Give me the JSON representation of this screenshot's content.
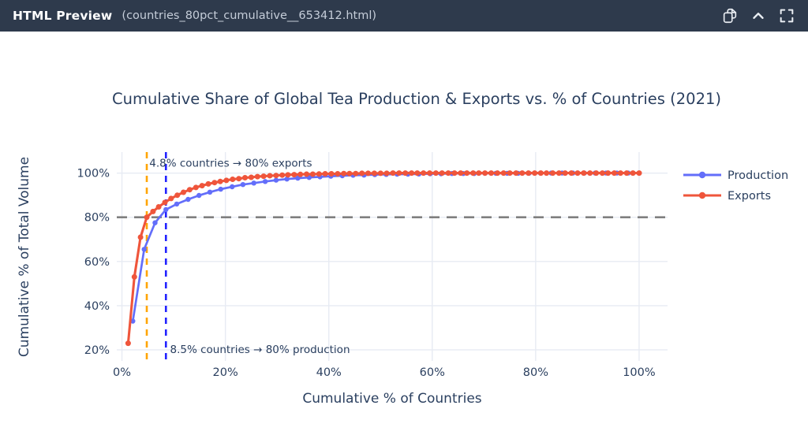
{
  "header": {
    "title": "HTML Preview",
    "filename": "(countries_80pct_cumulative__653412.html)",
    "icons": [
      "copy-icon",
      "collapse-icon",
      "fullscreen-icon"
    ]
  },
  "colors": {
    "header_bg": "#2e3a4c",
    "header_text": "#ffffff",
    "header_filename": "#c5cdd9",
    "header_icon": "#e9edf2",
    "text": "#2a3f5f",
    "grid": "#e7ebf3",
    "background": "#ffffff",
    "production": "#636efa",
    "exports": "#ef553b",
    "hline": "#7f7f7f",
    "vline_exports": "#ffa500",
    "vline_production": "#2222ff"
  },
  "chart_data": {
    "type": "line",
    "title": "Cumulative Share of Global Tea Production & Exports vs. % of Countries (2021)",
    "xlabel": "Cumulative % of Countries",
    "ylabel": "Cumulative % of Total Volume",
    "xlim": [
      -1,
      105.5
    ],
    "ylim": [
      15,
      109.5
    ],
    "grid": true,
    "legend_position": "right",
    "x_ticks": {
      "values": [
        0,
        20,
        40,
        60,
        80,
        100
      ],
      "labels": [
        "0%",
        "20%",
        "40%",
        "60%",
        "80%",
        "100%"
      ]
    },
    "y_ticks": {
      "values": [
        20,
        40,
        60,
        80,
        100
      ],
      "labels": [
        "20%",
        "40%",
        "60%",
        "80%",
        "100%"
      ]
    },
    "reference_lines": {
      "horizontal": [
        {
          "y": 80,
          "style": "dashed",
          "color_key": "hline"
        }
      ],
      "vertical": [
        {
          "x": 4.8,
          "style": "dashed",
          "color_key": "vline_exports"
        },
        {
          "x": 8.5,
          "style": "dashed",
          "color_key": "vline_production"
        }
      ]
    },
    "annotations": [
      {
        "text": "4.8% countries → 80% exports",
        "x": 5.3,
        "y": 104.6,
        "anchor": "start"
      },
      {
        "text": "8.5% countries → 80% production",
        "x": 9.3,
        "y": 20.3,
        "anchor": "start"
      }
    ],
    "series": [
      {
        "name": "Production",
        "color_key": "production",
        "line_width": 2.7,
        "marker_r": 3.2,
        "x": [
          2.1,
          4.3,
          6.4,
          8.5,
          10.6,
          12.8,
          14.9,
          17.0,
          19.1,
          21.3,
          23.4,
          25.5,
          27.7,
          29.8,
          31.9,
          34.0,
          36.2,
          38.3,
          40.4,
          42.6,
          44.7,
          46.8,
          48.9,
          51.1,
          53.2,
          55.3,
          57.4,
          59.6,
          61.7,
          63.8,
          66.0,
          68.1,
          70.2,
          72.3,
          74.5,
          76.6,
          78.7,
          80.9,
          83.0,
          85.1,
          87.2,
          89.4,
          91.5,
          93.6,
          95.7,
          97.9,
          100.0
        ],
        "y": [
          33.0,
          65.5,
          77.5,
          83.5,
          86.0,
          88.1,
          89.9,
          91.4,
          92.7,
          93.8,
          94.8,
          95.5,
          96.2,
          96.8,
          97.3,
          97.7,
          98.0,
          98.3,
          98.6,
          98.8,
          99.0,
          99.1,
          99.3,
          99.4,
          99.5,
          99.5,
          99.6,
          99.7,
          99.7,
          99.8,
          99.8,
          99.8,
          99.9,
          99.9,
          99.9,
          99.9,
          99.9,
          100.0,
          100.0,
          100.0,
          100.0,
          100.0,
          100.0,
          100.0,
          100.0,
          100.0,
          100.0
        ]
      },
      {
        "name": "Exports",
        "color_key": "exports",
        "line_width": 3.1,
        "marker_r": 3.5,
        "x": [
          1.2,
          2.4,
          3.6,
          4.8,
          6.0,
          7.1,
          8.3,
          9.5,
          10.7,
          11.9,
          13.1,
          14.3,
          15.5,
          16.7,
          17.9,
          19.0,
          20.2,
          21.4,
          22.6,
          23.8,
          25.0,
          26.2,
          27.4,
          28.6,
          29.8,
          31.0,
          32.1,
          33.3,
          34.5,
          35.7,
          36.9,
          38.1,
          39.3,
          40.5,
          41.7,
          42.9,
          44.0,
          45.2,
          46.4,
          47.6,
          48.8,
          50.0,
          51.2,
          52.4,
          53.6,
          54.8,
          56.0,
          57.1,
          58.3,
          59.5,
          60.7,
          61.9,
          63.1,
          64.3,
          65.5,
          66.7,
          67.9,
          69.0,
          70.2,
          71.4,
          72.6,
          73.8,
          75.0,
          76.2,
          77.4,
          78.6,
          79.8,
          81.0,
          82.1,
          83.3,
          84.5,
          85.7,
          86.9,
          88.1,
          89.3,
          90.5,
          91.7,
          92.9,
          94.0,
          95.2,
          96.4,
          97.6,
          98.8,
          100.0
        ],
        "y": [
          23.0,
          53.0,
          71.0,
          80.0,
          82.6,
          84.7,
          86.7,
          88.5,
          90.0,
          91.3,
          92.5,
          93.5,
          94.3,
          95.1,
          95.7,
          96.2,
          96.7,
          97.2,
          97.5,
          97.9,
          98.1,
          98.4,
          98.6,
          98.8,
          98.9,
          99.1,
          99.2,
          99.3,
          99.4,
          99.5,
          99.5,
          99.6,
          99.7,
          99.7,
          99.7,
          99.8,
          99.8,
          99.8,
          99.9,
          99.9,
          99.9,
          99.9,
          99.9,
          100.0,
          100.0,
          100.0,
          100.0,
          100.0,
          100.0,
          100.0,
          100.0,
          100.0,
          100.0,
          100.0,
          100.0,
          100.0,
          100.0,
          100.0,
          100.0,
          100.0,
          100.0,
          100.0,
          100.0,
          100.0,
          100.0,
          100.0,
          100.0,
          100.0,
          100.0,
          100.0,
          100.0,
          100.0,
          100.0,
          100.0,
          100.0,
          100.0,
          100.0,
          100.0,
          100.0,
          100.0,
          100.0,
          100.0,
          100.0,
          100.0
        ]
      }
    ]
  }
}
